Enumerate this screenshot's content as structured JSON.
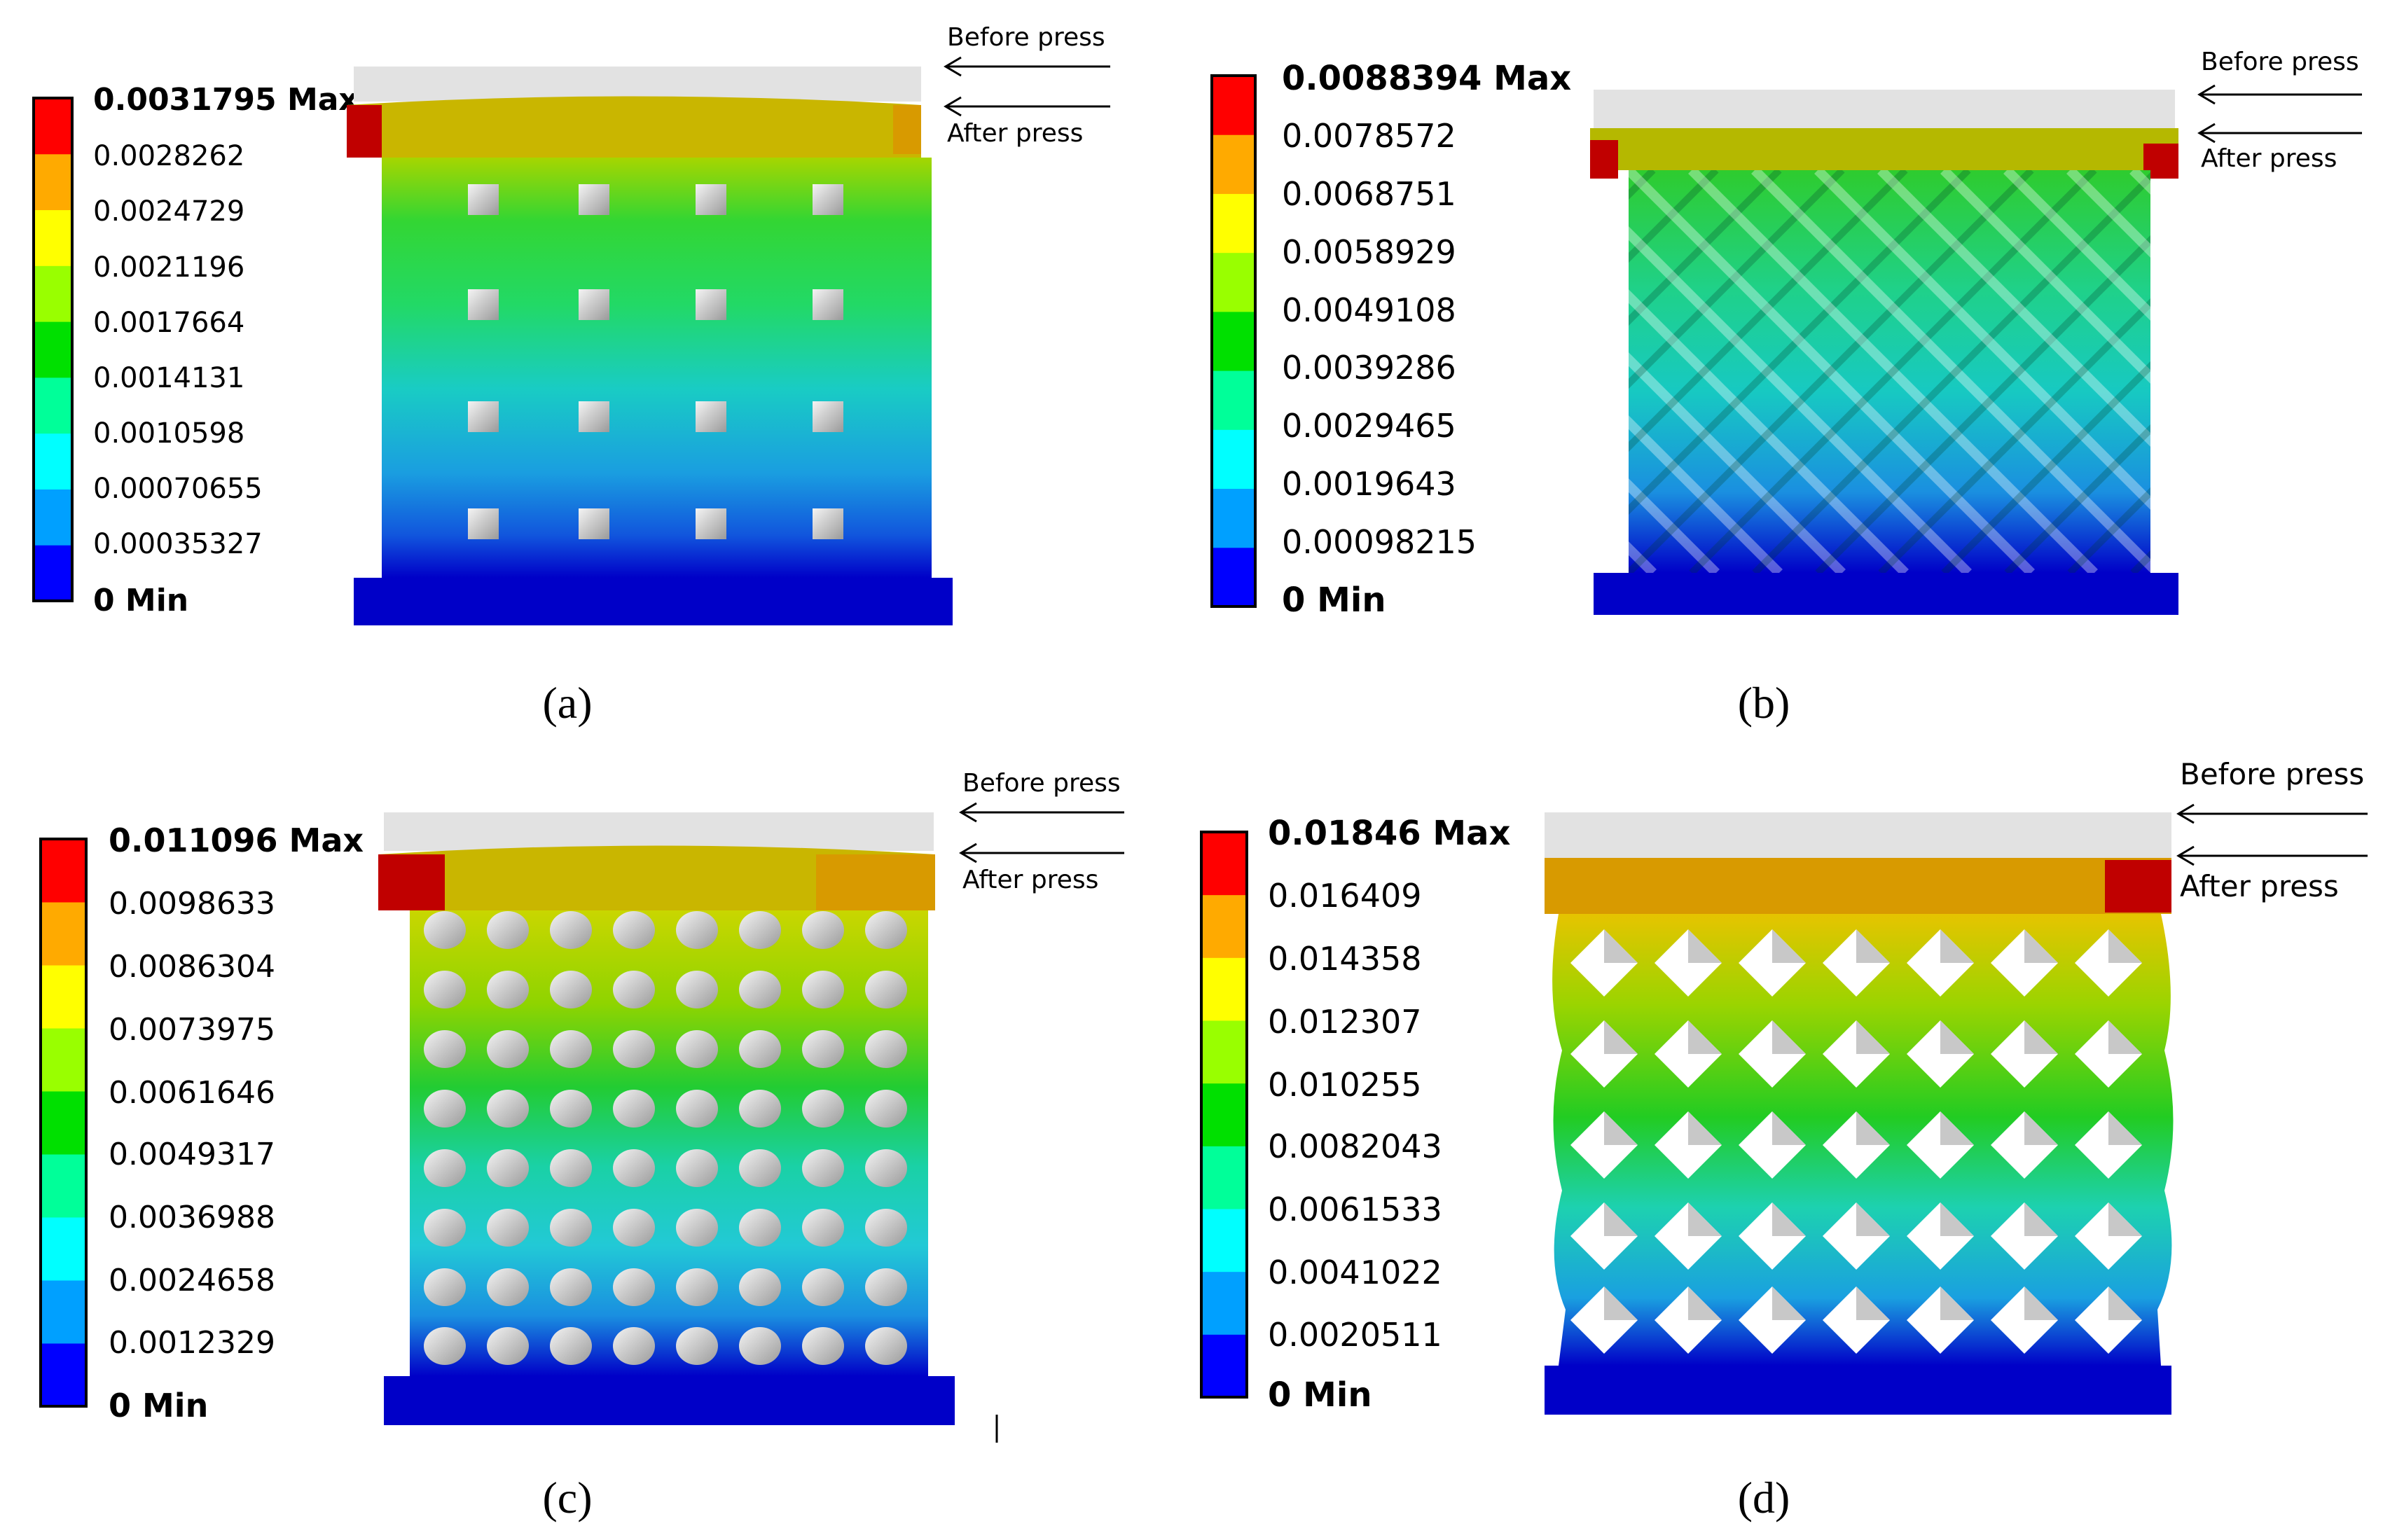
{
  "colorbar": [
    "#0000ff",
    "#00a0ff",
    "#00ffff",
    "#00ff99",
    "#00e000",
    "#99ff00",
    "#ffff00",
    "#ffaa00",
    "#ff0000"
  ],
  "lattice_colors": {
    "deep_blue": "#0000c8",
    "plate_grey": "#e2e2e2",
    "plate_orange": "#d89a00",
    "plate_olive": "#b5b800",
    "corner_red": "#c00000"
  },
  "panels": [
    {
      "caption": "(a)",
      "before_label": "Before press",
      "after_label": "After press",
      "legend": [
        "0.0031795 Max",
        "0.0028262",
        "0.0024729",
        "0.0021196",
        "0.0017664",
        "0.0014131",
        "0.0010598",
        "0.00070655",
        "0.00035327",
        "0 Min"
      ]
    },
    {
      "caption": "(b)",
      "before_label": "Before press",
      "after_label": "After press",
      "legend": [
        "0.0088394 Max",
        "0.0078572",
        "0.0068751",
        "0.0058929",
        "0.0049108",
        "0.0039286",
        "0.0029465",
        "0.0019643",
        "0.00098215",
        "0 Min"
      ]
    },
    {
      "caption": "(c)",
      "before_label": "Before press",
      "after_label": "After press",
      "legend": [
        "0.011096 Max",
        "0.0098633",
        "0.0086304",
        "0.0073975",
        "0.0061646",
        "0.0049317",
        "0.0036988",
        "0.0024658",
        "0.0012329",
        "0 Min"
      ]
    },
    {
      "caption": "(d)",
      "before_label": "Before press",
      "after_label": "After press",
      "legend": [
        "0.01846 Max",
        "0.016409",
        "0.014358",
        "0.012307",
        "0.010255",
        "0.0082043",
        "0.0061533",
        "0.0041022",
        "0.0020511",
        "0 Min"
      ]
    }
  ]
}
